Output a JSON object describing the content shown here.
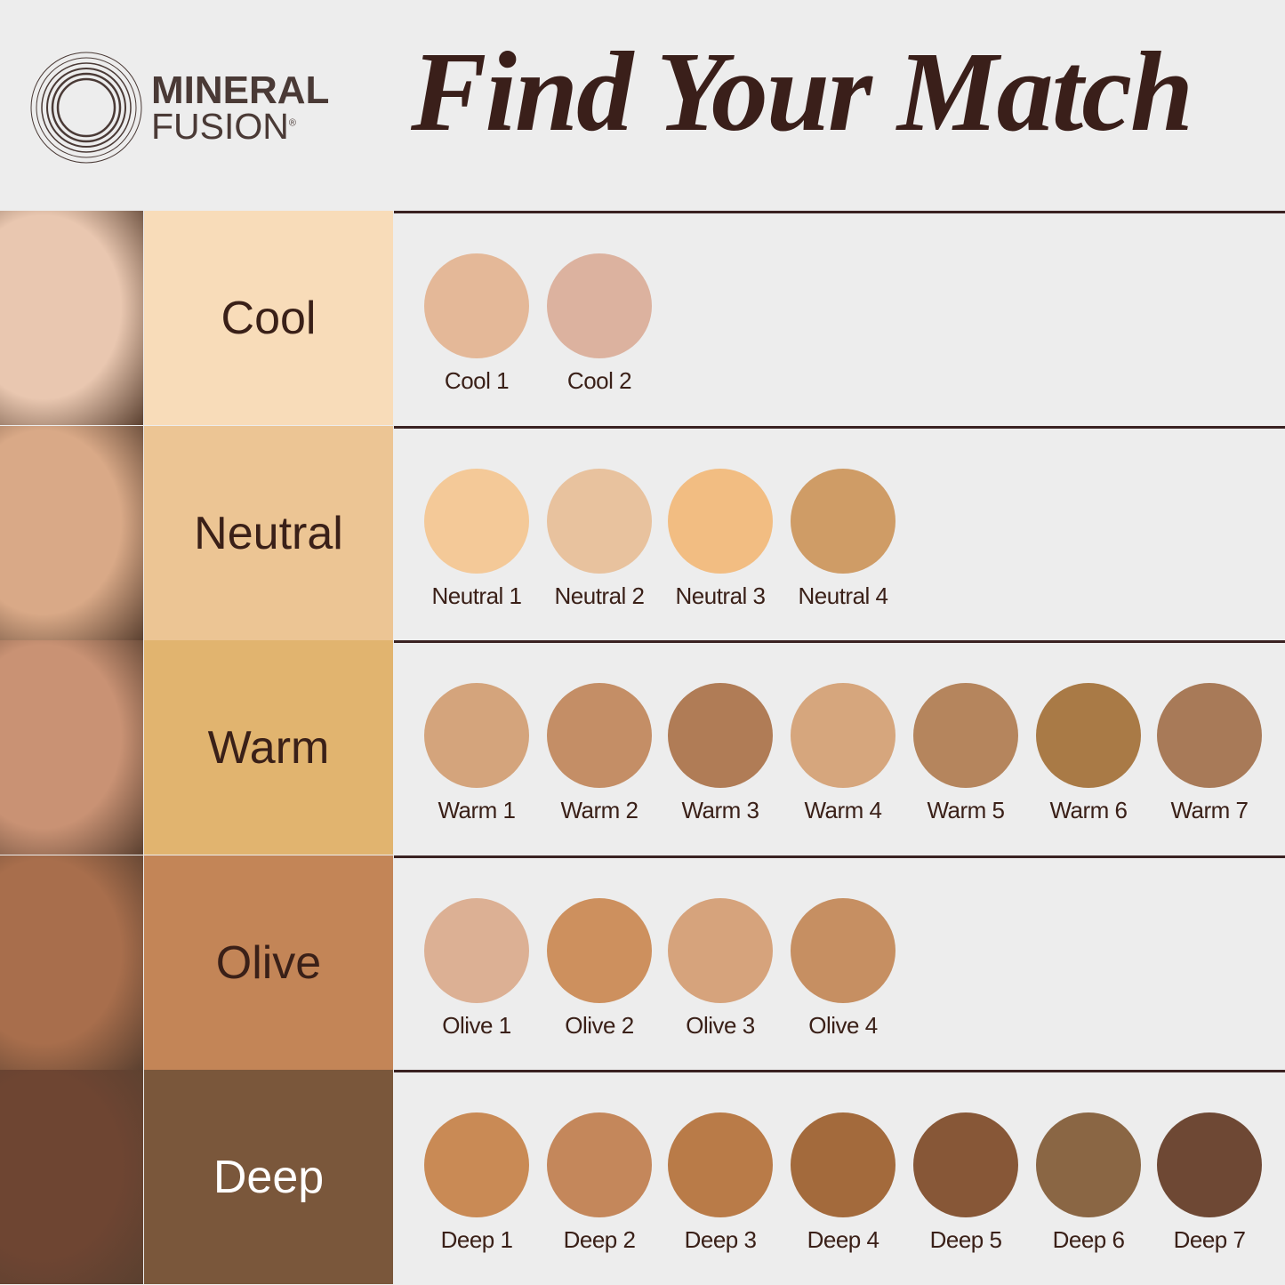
{
  "brand": {
    "line1": "MINERAL",
    "line2": "FUSION",
    "mark": "®"
  },
  "title": "Find Your Match",
  "rows": [
    {
      "label": "Cool",
      "color": "#f8dcb9",
      "text_color": "#3a2018",
      "photo_color": "#e9c7b0",
      "shades": [
        {
          "name": "Cool 1",
          "color": "#e4b898"
        },
        {
          "name": "Cool 2",
          "color": "#dcb29f"
        }
      ]
    },
    {
      "label": "Neutral",
      "color": "#ecc594",
      "text_color": "#3a2018",
      "photo_color": "#d9a987",
      "shades": [
        {
          "name": "Neutral 1",
          "color": "#f4c998"
        },
        {
          "name": "Neutral 2",
          "color": "#e8c29e"
        },
        {
          "name": "Neutral 3",
          "color": "#f2bd82"
        },
        {
          "name": "Neutral 4",
          "color": "#cf9c66"
        }
      ]
    },
    {
      "label": "Warm",
      "color": "#e1b46f",
      "text_color": "#3a2018",
      "photo_color": "#c99274",
      "shades": [
        {
          "name": "Warm 1",
          "color": "#d4a47c"
        },
        {
          "name": "Warm 2",
          "color": "#c48e66"
        },
        {
          "name": "Warm 3",
          "color": "#b07c56"
        },
        {
          "name": "Warm 4",
          "color": "#d6a67d"
        },
        {
          "name": "Warm 5",
          "color": "#b5855d"
        },
        {
          "name": "Warm 6",
          "color": "#a97a46"
        },
        {
          "name": "Warm 7",
          "color": "#a87a58"
        }
      ]
    },
    {
      "label": "Olive",
      "color": "#c38557",
      "text_color": "#3a2018",
      "photo_color": "#a86e4c",
      "shades": [
        {
          "name": "Olive 1",
          "color": "#dcb094"
        },
        {
          "name": "Olive 2",
          "color": "#cd905e"
        },
        {
          "name": "Olive 3",
          "color": "#d6a37c"
        },
        {
          "name": "Olive 4",
          "color": "#c68f62"
        }
      ]
    },
    {
      "label": "Deep",
      "color": "#7a573b",
      "text_color": "#ffffff",
      "photo_color": "#6e4532",
      "shades": [
        {
          "name": "Deep 1",
          "color": "#c98a55"
        },
        {
          "name": "Deep 2",
          "color": "#c4875b"
        },
        {
          "name": "Deep 3",
          "color": "#b97b48"
        },
        {
          "name": "Deep 4",
          "color": "#a36a3c"
        },
        {
          "name": "Deep 5",
          "color": "#875737"
        },
        {
          "name": "Deep 6",
          "color": "#8a6644"
        },
        {
          "name": "Deep 7",
          "color": "#6e4834"
        }
      ]
    }
  ]
}
